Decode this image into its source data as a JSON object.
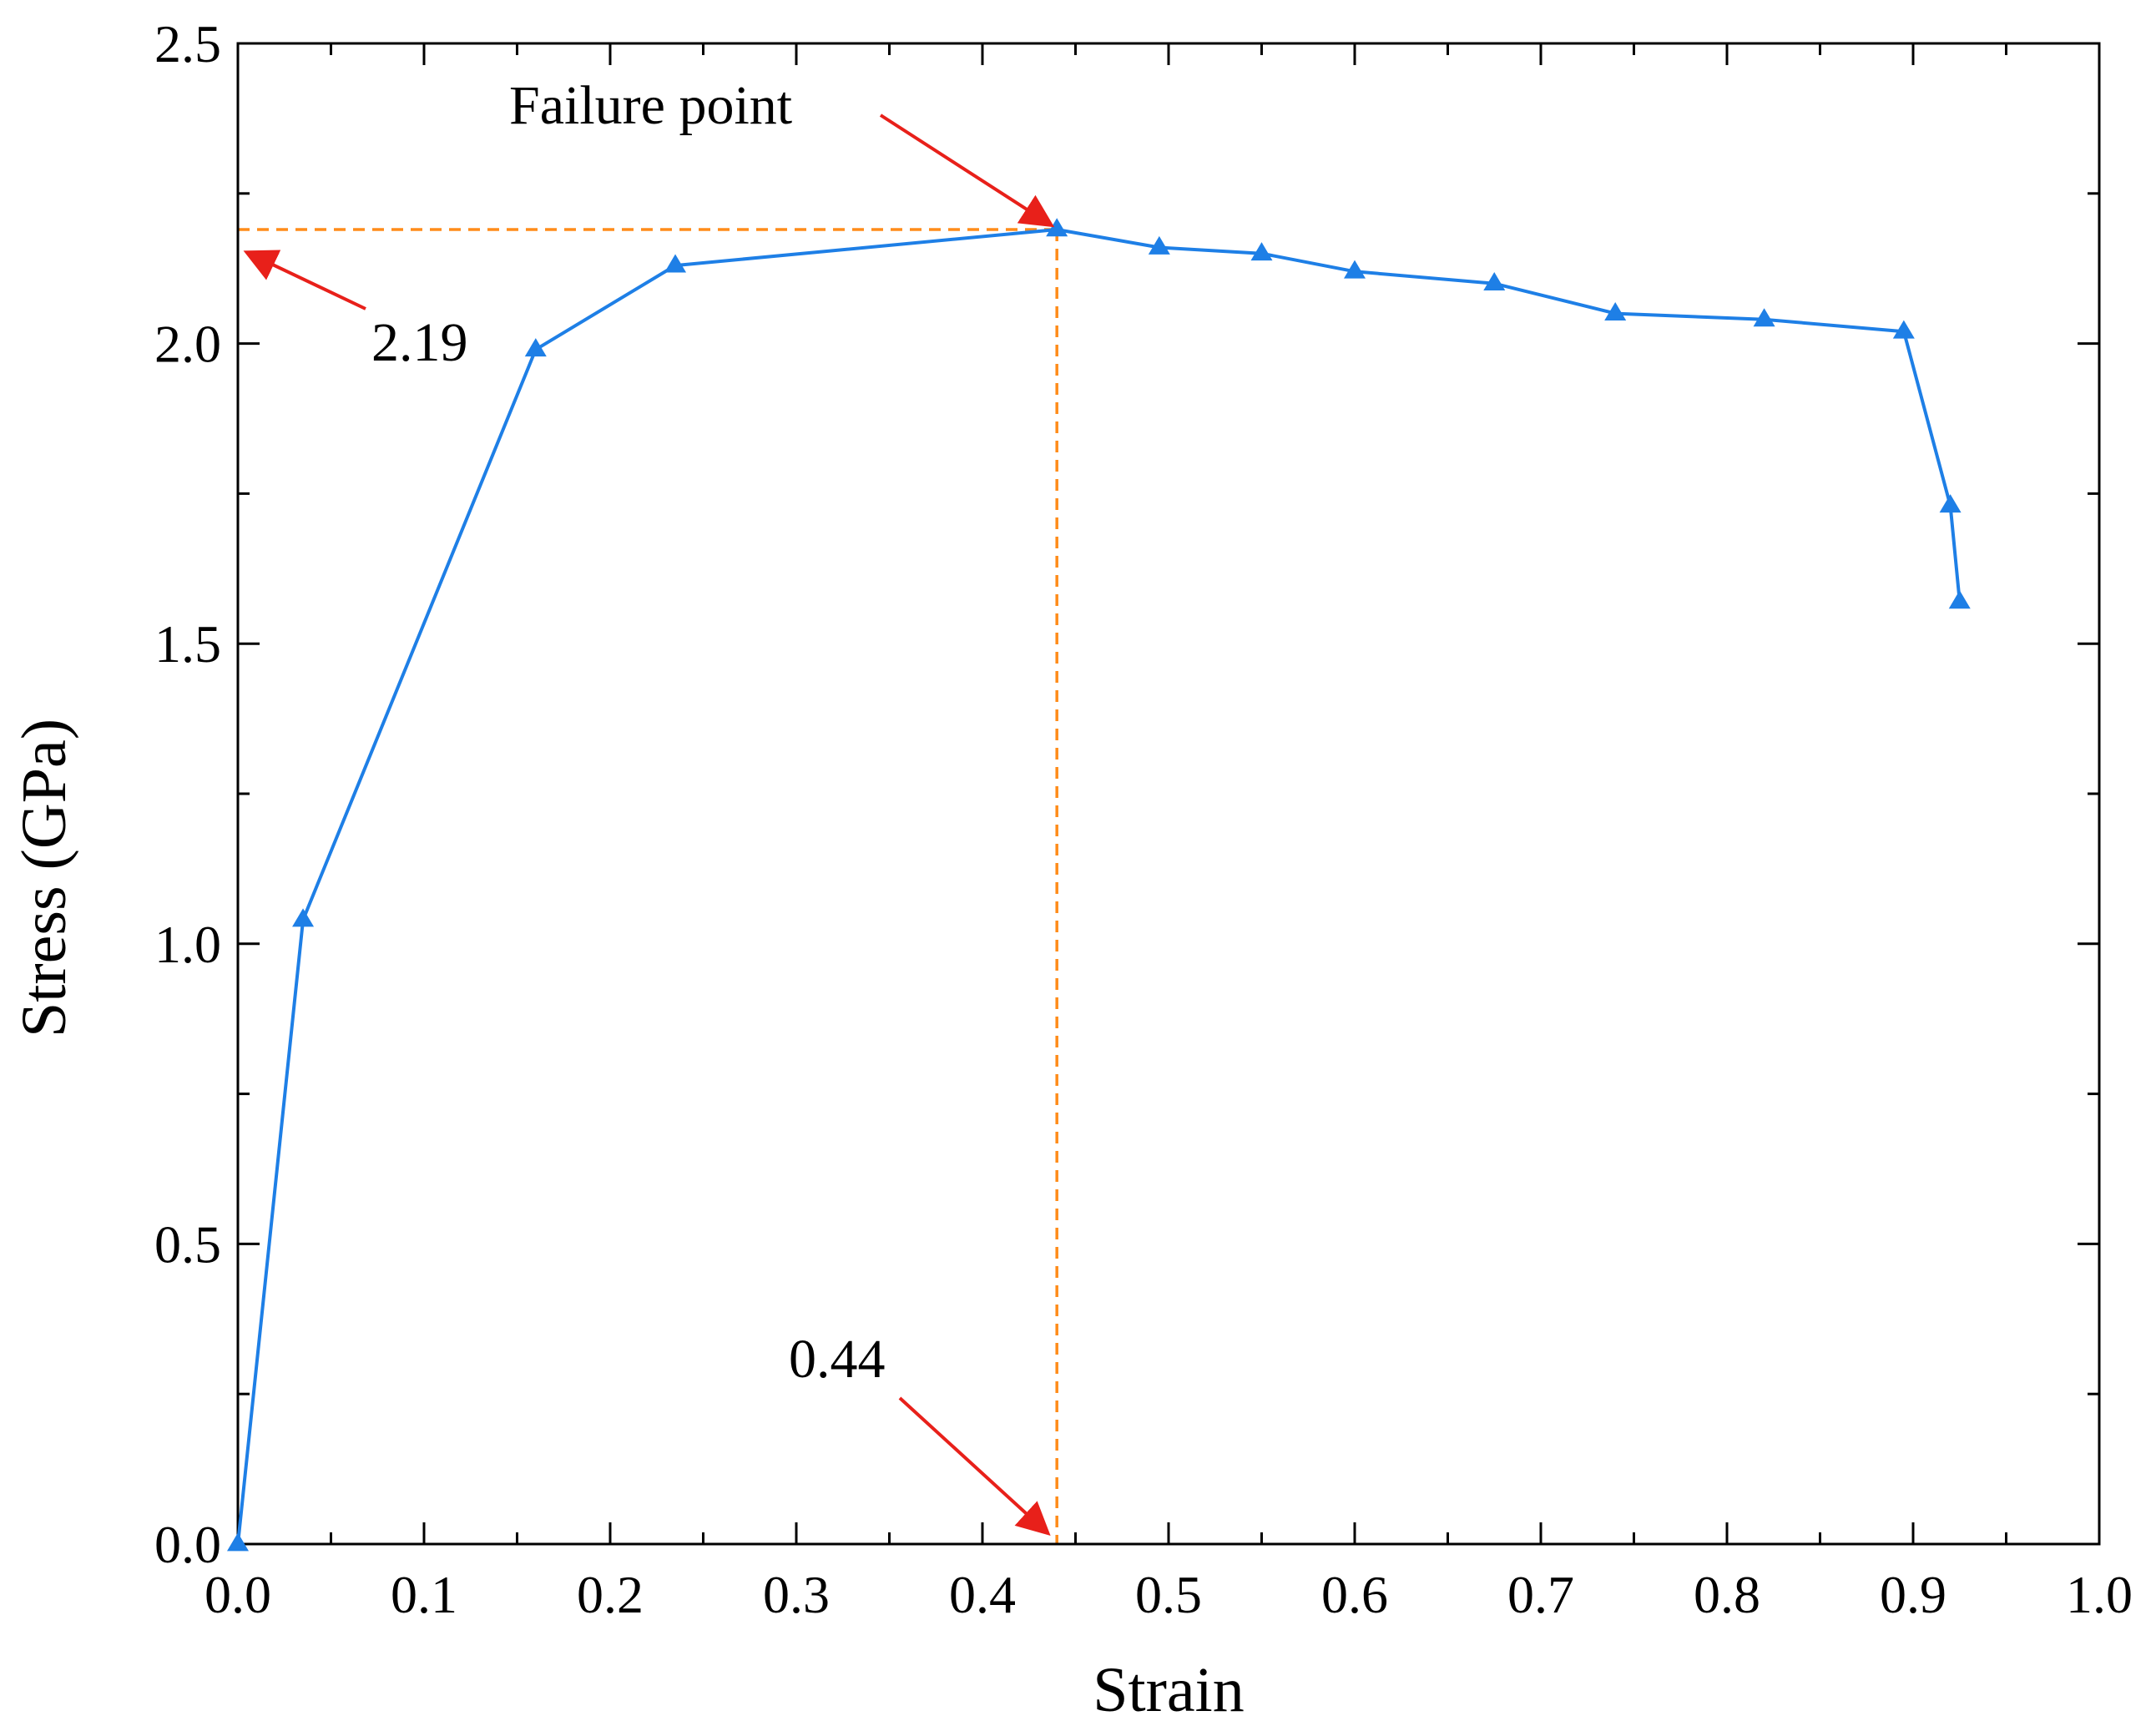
{
  "chart_data": {
    "type": "line",
    "xlabel": "Strain",
    "ylabel": "Stress (GPa)",
    "xlim": [
      0.0,
      1.0
    ],
    "ylim": [
      0.0,
      2.5
    ],
    "xticks": [
      "0.0",
      "0.1",
      "0.2",
      "0.3",
      "0.4",
      "0.5",
      "0.6",
      "0.7",
      "0.8",
      "0.9",
      "1.0"
    ],
    "yticks": [
      "0.0",
      "0.5",
      "1.0",
      "1.5",
      "2.0",
      "2.5"
    ],
    "grid": false,
    "legend": "none",
    "series": [
      {
        "marker": "triangle",
        "color": "#1e7fe6",
        "x": [
          0.0,
          0.035,
          0.16,
          0.235,
          0.44,
          0.495,
          0.55,
          0.6,
          0.675,
          0.74,
          0.82,
          0.895,
          0.92,
          0.925
        ],
        "y": [
          0.0,
          1.04,
          1.99,
          2.13,
          2.19,
          2.16,
          2.15,
          2.12,
          2.1,
          2.05,
          2.04,
          2.02,
          1.73,
          1.57
        ]
      }
    ],
    "annotations": [
      {
        "text": "Failure point",
        "x": 0.44,
        "y": 2.19
      },
      {
        "text": "2.19",
        "refers_to": "y",
        "value": 2.19
      },
      {
        "text": "0.44",
        "refers_to": "x",
        "value": 0.44
      }
    ],
    "reference_lines": {
      "color": "#ff8c1a",
      "style": "dashed",
      "x": 0.44,
      "y": 2.19
    },
    "arrow_color": "#e8201a"
  }
}
